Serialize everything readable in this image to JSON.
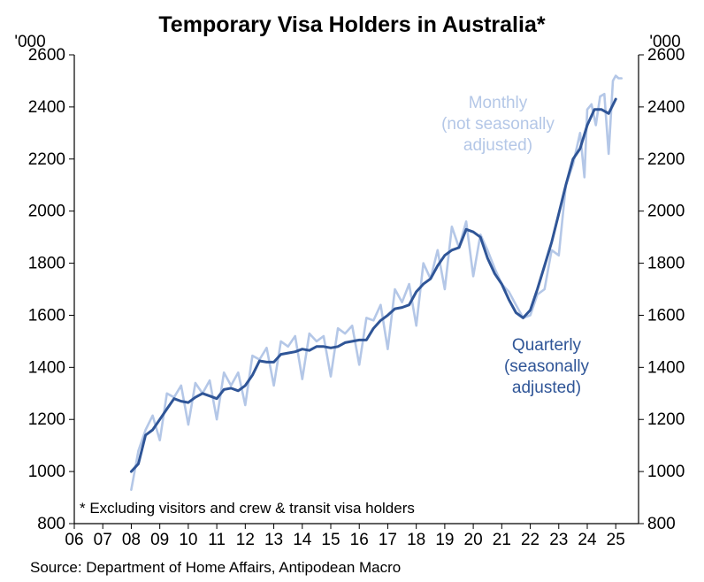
{
  "chart_data": {
    "type": "line",
    "title": "Temporary Visa Holders in Australia*",
    "y_unit_left": "'000",
    "y_unit_right": "'000",
    "note": "* Excluding visitors and crew & transit visa holders",
    "source": "Source: Department of Home Affairs, Antipodean Macro",
    "x_range": [
      2006,
      2025.8
    ],
    "x_ticks": [
      {
        "x": 2006,
        "label": "06"
      },
      {
        "x": 2007,
        "label": "07"
      },
      {
        "x": 2008,
        "label": "08"
      },
      {
        "x": 2009,
        "label": "09"
      },
      {
        "x": 2010,
        "label": "10"
      },
      {
        "x": 2011,
        "label": "11"
      },
      {
        "x": 2012,
        "label": "12"
      },
      {
        "x": 2013,
        "label": "13"
      },
      {
        "x": 2014,
        "label": "14"
      },
      {
        "x": 2015,
        "label": "15"
      },
      {
        "x": 2016,
        "label": "16"
      },
      {
        "x": 2017,
        "label": "17"
      },
      {
        "x": 2018,
        "label": "18"
      },
      {
        "x": 2019,
        "label": "19"
      },
      {
        "x": 2020,
        "label": "20"
      },
      {
        "x": 2021,
        "label": "21"
      },
      {
        "x": 2022,
        "label": "22"
      },
      {
        "x": 2023,
        "label": "23"
      },
      {
        "x": 2024,
        "label": "24"
      },
      {
        "x": 2025,
        "label": "25"
      }
    ],
    "ylim": [
      800,
      2600
    ],
    "y_ticks": [
      800,
      1000,
      1200,
      1400,
      1600,
      1800,
      2000,
      2200,
      2400,
      2600
    ],
    "grid": false,
    "series": [
      {
        "name": "Monthly (not seasonally adjusted)",
        "color": "#b4c7e7",
        "points": [
          [
            2008.0,
            930
          ],
          [
            2008.25,
            1080
          ],
          [
            2008.5,
            1160
          ],
          [
            2008.75,
            1215
          ],
          [
            2009.0,
            1120
          ],
          [
            2009.25,
            1300
          ],
          [
            2009.5,
            1285
          ],
          [
            2009.75,
            1330
          ],
          [
            2010.0,
            1180
          ],
          [
            2010.25,
            1340
          ],
          [
            2010.5,
            1300
          ],
          [
            2010.75,
            1350
          ],
          [
            2011.0,
            1200
          ],
          [
            2011.25,
            1380
          ],
          [
            2011.5,
            1330
          ],
          [
            2011.75,
            1380
          ],
          [
            2012.0,
            1255
          ],
          [
            2012.25,
            1445
          ],
          [
            2012.5,
            1430
          ],
          [
            2012.75,
            1475
          ],
          [
            2013.0,
            1330
          ],
          [
            2013.25,
            1500
          ],
          [
            2013.5,
            1480
          ],
          [
            2013.75,
            1520
          ],
          [
            2014.0,
            1355
          ],
          [
            2014.25,
            1530
          ],
          [
            2014.5,
            1500
          ],
          [
            2014.75,
            1520
          ],
          [
            2015.0,
            1365
          ],
          [
            2015.25,
            1550
          ],
          [
            2015.5,
            1530
          ],
          [
            2015.75,
            1560
          ],
          [
            2016.0,
            1410
          ],
          [
            2016.25,
            1590
          ],
          [
            2016.5,
            1580
          ],
          [
            2016.75,
            1640
          ],
          [
            2017.0,
            1470
          ],
          [
            2017.25,
            1700
          ],
          [
            2017.5,
            1650
          ],
          [
            2017.75,
            1720
          ],
          [
            2018.0,
            1560
          ],
          [
            2018.25,
            1800
          ],
          [
            2018.5,
            1740
          ],
          [
            2018.75,
            1850
          ],
          [
            2019.0,
            1700
          ],
          [
            2019.25,
            1940
          ],
          [
            2019.5,
            1860
          ],
          [
            2019.75,
            1960
          ],
          [
            2020.0,
            1750
          ],
          [
            2020.25,
            1910
          ],
          [
            2020.5,
            1850
          ],
          [
            2020.75,
            1780
          ],
          [
            2021.0,
            1720
          ],
          [
            2021.25,
            1690
          ],
          [
            2021.5,
            1640
          ],
          [
            2021.75,
            1590
          ],
          [
            2022.0,
            1600
          ],
          [
            2022.25,
            1680
          ],
          [
            2022.5,
            1700
          ],
          [
            2022.75,
            1850
          ],
          [
            2023.0,
            1830
          ],
          [
            2023.25,
            2100
          ],
          [
            2023.5,
            2180
          ],
          [
            2023.75,
            2300
          ],
          [
            2023.9,
            2130
          ],
          [
            2024.0,
            2390
          ],
          [
            2024.15,
            2410
          ],
          [
            2024.3,
            2330
          ],
          [
            2024.45,
            2440
          ],
          [
            2024.6,
            2450
          ],
          [
            2024.75,
            2220
          ],
          [
            2024.9,
            2500
          ],
          [
            2025.0,
            2520
          ],
          [
            2025.1,
            2510
          ],
          [
            2025.2,
            2510
          ]
        ]
      },
      {
        "name": "Quarterly (seasonally adjusted)",
        "color": "#2f5597",
        "points": [
          [
            2008.0,
            1000
          ],
          [
            2008.25,
            1030
          ],
          [
            2008.5,
            1140
          ],
          [
            2008.75,
            1160
          ],
          [
            2009.0,
            1200
          ],
          [
            2009.25,
            1240
          ],
          [
            2009.5,
            1280
          ],
          [
            2009.75,
            1270
          ],
          [
            2010.0,
            1265
          ],
          [
            2010.25,
            1285
          ],
          [
            2010.5,
            1300
          ],
          [
            2010.75,
            1290
          ],
          [
            2011.0,
            1280
          ],
          [
            2011.25,
            1315
          ],
          [
            2011.5,
            1320
          ],
          [
            2011.75,
            1310
          ],
          [
            2012.0,
            1330
          ],
          [
            2012.25,
            1370
          ],
          [
            2012.5,
            1425
          ],
          [
            2012.75,
            1420
          ],
          [
            2013.0,
            1420
          ],
          [
            2013.25,
            1450
          ],
          [
            2013.5,
            1455
          ],
          [
            2013.75,
            1460
          ],
          [
            2014.0,
            1470
          ],
          [
            2014.25,
            1465
          ],
          [
            2014.5,
            1480
          ],
          [
            2014.75,
            1480
          ],
          [
            2015.0,
            1475
          ],
          [
            2015.25,
            1480
          ],
          [
            2015.5,
            1495
          ],
          [
            2015.75,
            1500
          ],
          [
            2016.0,
            1505
          ],
          [
            2016.25,
            1505
          ],
          [
            2016.5,
            1550
          ],
          [
            2016.75,
            1580
          ],
          [
            2017.0,
            1600
          ],
          [
            2017.25,
            1625
          ],
          [
            2017.5,
            1630
          ],
          [
            2017.75,
            1640
          ],
          [
            2018.0,
            1690
          ],
          [
            2018.25,
            1720
          ],
          [
            2018.5,
            1740
          ],
          [
            2018.75,
            1790
          ],
          [
            2019.0,
            1830
          ],
          [
            2019.25,
            1850
          ],
          [
            2019.5,
            1860
          ],
          [
            2019.75,
            1930
          ],
          [
            2020.0,
            1920
          ],
          [
            2020.25,
            1900
          ],
          [
            2020.5,
            1820
          ],
          [
            2020.75,
            1760
          ],
          [
            2021.0,
            1720
          ],
          [
            2021.25,
            1660
          ],
          [
            2021.5,
            1610
          ],
          [
            2021.75,
            1590
          ],
          [
            2022.0,
            1620
          ],
          [
            2022.25,
            1700
          ],
          [
            2022.5,
            1790
          ],
          [
            2022.75,
            1880
          ],
          [
            2023.0,
            1990
          ],
          [
            2023.25,
            2100
          ],
          [
            2023.5,
            2200
          ],
          [
            2023.75,
            2240
          ],
          [
            2024.0,
            2330
          ],
          [
            2024.25,
            2390
          ],
          [
            2024.5,
            2390
          ],
          [
            2024.75,
            2375
          ],
          [
            2025.0,
            2430
          ]
        ]
      }
    ],
    "annotations": {
      "monthly": [
        "Monthly",
        "(not seasonally",
        "adjusted)"
      ],
      "quarterly": [
        "Quarterly",
        "(seasonally",
        "adjusted)"
      ]
    }
  }
}
